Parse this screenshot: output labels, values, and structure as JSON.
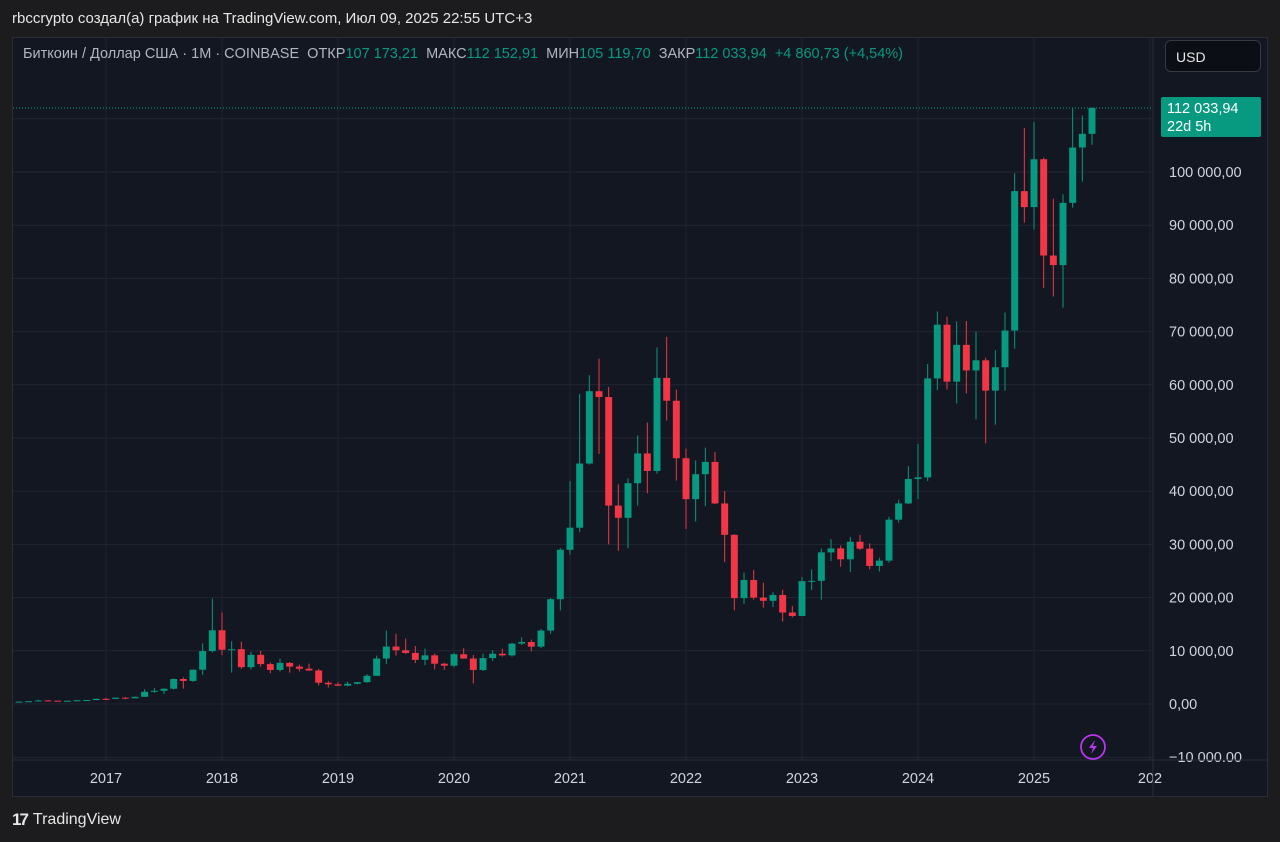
{
  "caption": "rbccrypto создал(а) график на TradingView.com, Июл 09, 2025 22:55 UTC+3",
  "legend": {
    "symbol": "Биткоин / Доллар США · 1M · COINBASE",
    "open_label": "ОТКР",
    "open_value": "107 173,21",
    "high_label": "МАКС",
    "high_value": "112 152,91",
    "low_label": "МИН",
    "low_value": "105 119,70",
    "close_label": "ЗАКР",
    "close_value": "112 033,94",
    "change": "+4 860,73 (+4,54%)"
  },
  "currency_button": "USD",
  "price_tag": {
    "price": "112 033,94",
    "countdown": "22d 5h"
  },
  "footer_brand": "TradingView",
  "colors": {
    "up": "#089981",
    "down": "#f23645",
    "background": "#131722",
    "grid": "#232632"
  },
  "chart_data": {
    "type": "candlestick",
    "title": "",
    "ylim": [
      -10000,
      120000
    ],
    "y_ticks": [
      {
        "value": 100000,
        "label": "100 000,00"
      },
      {
        "value": 90000,
        "label": "90 000,00"
      },
      {
        "value": 80000,
        "label": "80 000,00"
      },
      {
        "value": 70000,
        "label": "70 000,00"
      },
      {
        "value": 60000,
        "label": "60 000,00"
      },
      {
        "value": 50000,
        "label": "50 000,00"
      },
      {
        "value": 40000,
        "label": "40 000,00"
      },
      {
        "value": 30000,
        "label": "30 000,00"
      },
      {
        "value": 20000,
        "label": "20 000,00"
      },
      {
        "value": 10000,
        "label": "10 000,00"
      },
      {
        "value": 0,
        "label": "0,00"
      },
      {
        "value": -10000,
        "label": "−10 000.00"
      }
    ],
    "x_ticks": [
      {
        "date": "2017-01",
        "label": "2017"
      },
      {
        "date": "2018-01",
        "label": "2018"
      },
      {
        "date": "2019-01",
        "label": "2019"
      },
      {
        "date": "2020-01",
        "label": "2020"
      },
      {
        "date": "2021-01",
        "label": "2021"
      },
      {
        "date": "2022-01",
        "label": "2022"
      },
      {
        "date": "2023-01",
        "label": "2023"
      },
      {
        "date": "2024-01",
        "label": "2024"
      },
      {
        "date": "2025-01",
        "label": "2025"
      },
      {
        "date": "2026-01",
        "label": "202"
      }
    ],
    "last_price": 112033.94,
    "candles": [
      [
        "2016-04",
        416,
        464,
        415,
        448
      ],
      [
        "2016-05",
        448,
        545,
        439,
        531
      ],
      [
        "2016-06",
        531,
        780,
        511,
        673
      ],
      [
        "2016-07",
        673,
        704,
        602,
        624
      ],
      [
        "2016-08",
        624,
        624,
        470,
        575
      ],
      [
        "2016-09",
        575,
        616,
        565,
        608
      ],
      [
        "2016-10",
        608,
        715,
        606,
        699
      ],
      [
        "2016-11",
        699,
        755,
        680,
        742
      ],
      [
        "2016-12",
        742,
        975,
        740,
        968
      ],
      [
        "2017-01",
        968,
        1150,
        750,
        964
      ],
      [
        "2017-02",
        964,
        1200,
        940,
        1190
      ],
      [
        "2017-03",
        1190,
        1290,
        890,
        1080
      ],
      [
        "2017-04",
        1080,
        1400,
        1050,
        1350
      ],
      [
        "2017-05",
        1350,
        2800,
        1350,
        2300
      ],
      [
        "2017-06",
        2300,
        3000,
        2100,
        2480
      ],
      [
        "2017-07",
        2480,
        2950,
        1850,
        2870
      ],
      [
        "2017-08",
        2870,
        4800,
        2700,
        4700
      ],
      [
        "2017-09",
        4700,
        5000,
        2900,
        4340
      ],
      [
        "2017-10",
        4340,
        6450,
        4150,
        6450
      ],
      [
        "2017-11",
        6450,
        11400,
        5500,
        9950
      ],
      [
        "2017-12",
        9950,
        19800,
        9700,
        13860
      ],
      [
        "2018-01",
        13860,
        17200,
        9200,
        10200
      ],
      [
        "2018-02",
        10200,
        11800,
        5900,
        10300
      ],
      [
        "2018-03",
        10300,
        11700,
        6600,
        6930
      ],
      [
        "2018-04",
        6930,
        9800,
        6500,
        9240
      ],
      [
        "2018-05",
        9240,
        10000,
        7000,
        7500
      ],
      [
        "2018-06",
        7500,
        7800,
        5800,
        6400
      ],
      [
        "2018-07",
        6400,
        8500,
        6100,
        7730
      ],
      [
        "2018-08",
        7730,
        7900,
        5900,
        7030
      ],
      [
        "2018-09",
        7030,
        7400,
        6100,
        6630
      ],
      [
        "2018-10",
        6630,
        7600,
        6200,
        6300
      ],
      [
        "2018-11",
        6300,
        6600,
        3500,
        4000
      ],
      [
        "2018-12",
        4000,
        4300,
        3100,
        3700
      ],
      [
        "2019-01",
        3700,
        4100,
        3350,
        3450
      ],
      [
        "2019-02",
        3450,
        4200,
        3350,
        3800
      ],
      [
        "2019-03",
        3800,
        4100,
        3700,
        4100
      ],
      [
        "2019-04",
        4100,
        5600,
        4000,
        5300
      ],
      [
        "2019-05",
        5300,
        9100,
        5300,
        8550
      ],
      [
        "2019-06",
        8550,
        13800,
        7500,
        10800
      ],
      [
        "2019-07",
        10800,
        13200,
        9100,
        10100
      ],
      [
        "2019-08",
        10100,
        12300,
        9400,
        9600
      ],
      [
        "2019-09",
        9600,
        10900,
        7700,
        8300
      ],
      [
        "2019-10",
        8300,
        10400,
        7300,
        9150
      ],
      [
        "2019-11",
        9150,
        9500,
        6500,
        7570
      ],
      [
        "2019-12",
        7570,
        7750,
        6400,
        7200
      ],
      [
        "2020-01",
        7200,
        9600,
        6900,
        9350
      ],
      [
        "2020-02",
        9350,
        10500,
        8500,
        8550
      ],
      [
        "2020-03",
        8550,
        9200,
        3850,
        6400
      ],
      [
        "2020-04",
        6400,
        9450,
        6200,
        8630
      ],
      [
        "2020-05",
        8630,
        10100,
        8100,
        9450
      ],
      [
        "2020-06",
        9450,
        10400,
        8900,
        9140
      ],
      [
        "2020-07",
        9140,
        11500,
        8900,
        11350
      ],
      [
        "2020-08",
        11350,
        12500,
        11100,
        11650
      ],
      [
        "2020-09",
        11650,
        12100,
        9900,
        10780
      ],
      [
        "2020-10",
        10780,
        14100,
        10500,
        13800
      ],
      [
        "2020-11",
        13800,
        19900,
        13200,
        19700
      ],
      [
        "2020-12",
        19700,
        29300,
        17600,
        28990
      ],
      [
        "2021-01",
        28990,
        41900,
        28100,
        33140
      ],
      [
        "2021-02",
        33140,
        58300,
        32300,
        45200
      ],
      [
        "2021-03",
        45200,
        61800,
        45000,
        58800
      ],
      [
        "2021-04",
        58800,
        64900,
        47000,
        57700
      ],
      [
        "2021-05",
        57700,
        59600,
        30000,
        37300
      ],
      [
        "2021-06",
        37300,
        41300,
        28800,
        35000
      ],
      [
        "2021-07",
        35000,
        42400,
        29300,
        41500
      ],
      [
        "2021-08",
        41500,
        50500,
        37300,
        47100
      ],
      [
        "2021-09",
        47100,
        52900,
        39600,
        43800
      ],
      [
        "2021-10",
        43800,
        67000,
        43300,
        61300
      ],
      [
        "2021-11",
        61300,
        69000,
        53300,
        57000
      ],
      [
        "2021-12",
        57000,
        59100,
        42000,
        46200
      ],
      [
        "2022-01",
        46200,
        48000,
        32900,
        38500
      ],
      [
        "2022-02",
        38500,
        45800,
        34300,
        43200
      ],
      [
        "2022-03",
        43200,
        48200,
        37200,
        45500
      ],
      [
        "2022-04",
        45500,
        47400,
        37600,
        37700
      ],
      [
        "2022-05",
        37700,
        40000,
        26700,
        31800
      ],
      [
        "2022-06",
        31800,
        31900,
        17600,
        19900
      ],
      [
        "2022-07",
        19900,
        24700,
        18800,
        23300
      ],
      [
        "2022-08",
        23300,
        25200,
        19600,
        20000
      ],
      [
        "2022-09",
        20000,
        22800,
        18100,
        19400
      ],
      [
        "2022-10",
        19400,
        21000,
        18200,
        20500
      ],
      [
        "2022-11",
        20500,
        21500,
        15500,
        17200
      ],
      [
        "2022-12",
        17200,
        18400,
        16300,
        16550
      ],
      [
        "2023-01",
        16550,
        23900,
        16500,
        23100
      ],
      [
        "2023-02",
        23100,
        25300,
        21400,
        23150
      ],
      [
        "2023-03",
        23150,
        29200,
        19600,
        28500
      ],
      [
        "2023-04",
        28500,
        31000,
        26900,
        29250
      ],
      [
        "2023-05",
        29250,
        29800,
        25800,
        27200
      ],
      [
        "2023-06",
        27200,
        31400,
        24800,
        30500
      ],
      [
        "2023-07",
        30500,
        31800,
        28900,
        29200
      ],
      [
        "2023-08",
        29200,
        30200,
        25300,
        25950
      ],
      [
        "2023-09",
        25950,
        27500,
        24900,
        26950
      ],
      [
        "2023-10",
        26950,
        35200,
        26550,
        34650
      ],
      [
        "2023-11",
        34650,
        38400,
        34100,
        37700
      ],
      [
        "2023-12",
        37700,
        44700,
        37600,
        42300
      ],
      [
        "2024-01",
        42300,
        48900,
        38500,
        42600
      ],
      [
        "2024-02",
        42600,
        63900,
        41900,
        61200
      ],
      [
        "2024-03",
        61200,
        73800,
        59000,
        71300
      ],
      [
        "2024-04",
        71300,
        72800,
        59100,
        60600
      ],
      [
        "2024-05",
        60600,
        71900,
        56500,
        67500
      ],
      [
        "2024-06",
        67500,
        72000,
        58400,
        62700
      ],
      [
        "2024-07",
        62700,
        70000,
        53500,
        64600
      ],
      [
        "2024-08",
        64600,
        65100,
        49000,
        58900
      ],
      [
        "2024-09",
        58900,
        66500,
        52500,
        63300
      ],
      [
        "2024-10",
        63300,
        73600,
        58900,
        70200
      ],
      [
        "2024-11",
        70200,
        99800,
        66800,
        96400
      ],
      [
        "2024-12",
        96400,
        108300,
        90500,
        93400
      ],
      [
        "2025-01",
        93400,
        109400,
        89200,
        102400
      ],
      [
        "2025-02",
        102400,
        102700,
        78200,
        84300
      ],
      [
        "2025-03",
        84300,
        95000,
        76600,
        82500
      ],
      [
        "2025-04",
        82500,
        95800,
        74500,
        94200
      ],
      [
        "2025-05",
        94200,
        111900,
        93300,
        104600
      ],
      [
        "2025-06",
        104600,
        110600,
        98200,
        107173
      ],
      [
        "2025-07",
        107173.21,
        112152.91,
        105119.7,
        112033.94
      ]
    ]
  }
}
